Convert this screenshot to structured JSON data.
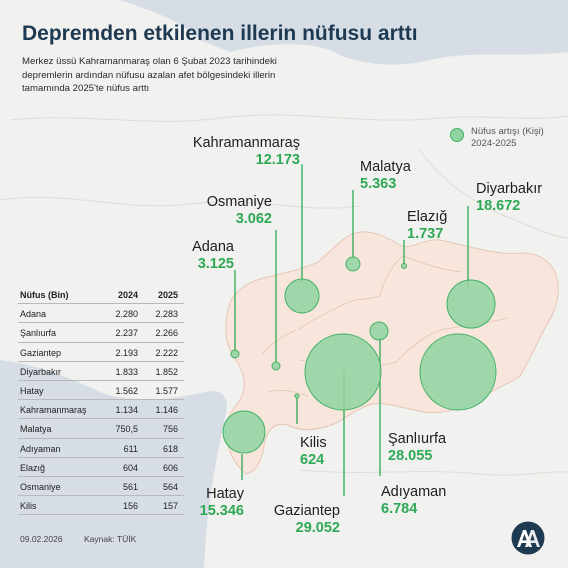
{
  "header": {
    "title": "Depremden etkilenen illerin nüfusu arttı",
    "subtitle": "Merkez üssü Kahramanmaraş olan 6 Şubat 2023 tarihindeki depremlerin ardından nüfusu azalan afet bölgesindeki illerin tamamında 2025'te nüfus arttı"
  },
  "legend": {
    "label_line1": "Nüfus artışı (Kişi)",
    "label_line2": "2024-2025",
    "bubble_color": "#8fd4a2"
  },
  "colors": {
    "region_fill": "#f8e6dc",
    "land_fill": "#f1f1ef",
    "sea_fill": "#d6dde5",
    "value_green": "#2ea955",
    "title_blue": "#1e3a52"
  },
  "provinces": [
    {
      "id": "kahramanmaras",
      "name": "Kahramanmaraş",
      "increase": "12.173"
    },
    {
      "id": "malatya",
      "name": "Malatya",
      "increase": "5.363"
    },
    {
      "id": "osmaniye",
      "name": "Osmaniye",
      "increase": "3.062"
    },
    {
      "id": "elazig",
      "name": "Elazığ",
      "increase": "1.737"
    },
    {
      "id": "diyarbakir",
      "name": "Diyarbakır",
      "increase": "18.672"
    },
    {
      "id": "adana",
      "name": "Adana",
      "increase": "3.125"
    },
    {
      "id": "kilis",
      "name": "Kilis",
      "increase": "624"
    },
    {
      "id": "sanliurfa",
      "name": "Şanlıurfa",
      "increase": "28.055"
    },
    {
      "id": "adiyaman",
      "name": "Adıyaman",
      "increase": "6.784"
    },
    {
      "id": "gaziantep",
      "name": "Gaziantep",
      "increase": "29.052"
    },
    {
      "id": "hatay",
      "name": "Hatay",
      "increase": "15.346"
    }
  ],
  "table": {
    "headers": [
      "Nüfus (Bin)",
      "2024",
      "2025"
    ],
    "rows": [
      [
        "Adana",
        "2.280",
        "2.283"
      ],
      [
        "Şanlıurfa",
        "2.237",
        "2.266"
      ],
      [
        "Gaziantep",
        "2.193",
        "2.222"
      ],
      [
        "Diyarbakır",
        "1.833",
        "1.852"
      ],
      [
        "Hatay",
        "1.562",
        "1.577"
      ],
      [
        "Kahramanmaraş",
        "1.134",
        "1.146"
      ],
      [
        "Malatya",
        "750,5",
        "756"
      ],
      [
        "Adıyaman",
        "611",
        "618"
      ],
      [
        "Elazığ",
        "604",
        "606"
      ],
      [
        "Osmaniye",
        "561",
        "564"
      ],
      [
        "Kilis",
        "156",
        "157"
      ]
    ]
  },
  "footer": {
    "date": "09.02.2026",
    "source": "Kaynak: TÜİK"
  },
  "logo_icon": "aa-logo-icon"
}
